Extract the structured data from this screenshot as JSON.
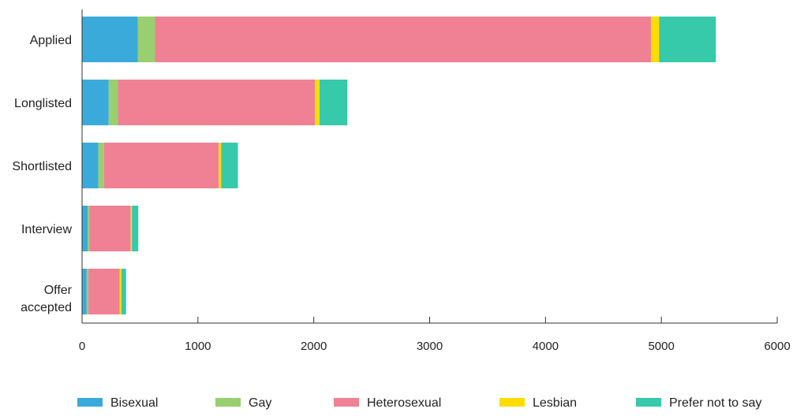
{
  "chart_data": {
    "type": "bar",
    "orientation": "horizontal",
    "stacked": true,
    "categories": [
      "Applied",
      "Longlisted",
      "Shortlisted",
      "Interview",
      "Offer accepted"
    ],
    "category_lines": [
      [
        "Applied"
      ],
      [
        "Longlisted"
      ],
      [
        "Shortlisted"
      ],
      [
        "Interview"
      ],
      [
        "Offer",
        "accepted"
      ]
    ],
    "series": [
      {
        "name": "Bisexual",
        "color": "#3aaadb",
        "values": [
          480,
          230,
          140,
          50,
          40
        ]
      },
      {
        "name": "Gay",
        "color": "#99cf6f",
        "values": [
          150,
          80,
          50,
          15,
          15
        ]
      },
      {
        "name": "Heterosexual",
        "color": "#f08093",
        "values": [
          4280,
          1700,
          990,
          355,
          270
        ]
      },
      {
        "name": "Lesbian",
        "color": "#ffdc00",
        "values": [
          70,
          40,
          20,
          10,
          15
        ]
      },
      {
        "name": "Prefer not to say",
        "color": "#36c9aa",
        "values": [
          490,
          240,
          145,
          55,
          40
        ]
      }
    ],
    "xlim": [
      0,
      6000
    ],
    "xticks": [
      0,
      1000,
      2000,
      3000,
      4000,
      5000,
      6000
    ],
    "xlabel": "",
    "ylabel": "",
    "title": "",
    "grid": false,
    "legend_position": "bottom"
  }
}
